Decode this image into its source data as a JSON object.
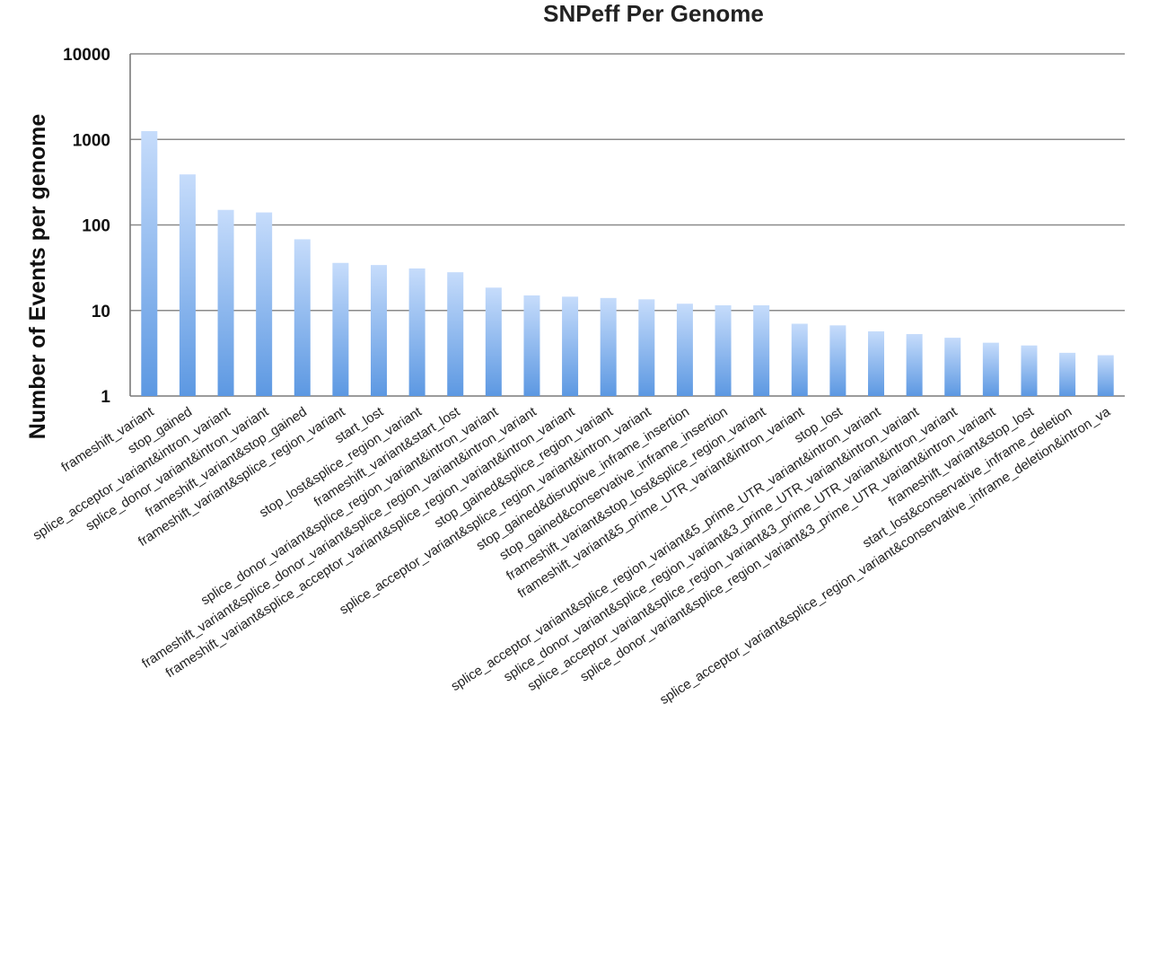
{
  "chart_data": {
    "type": "bar",
    "title": "SNPeff Per Genome",
    "xlabel": "",
    "ylabel": "Number of Events per genome",
    "yscale": "log",
    "ylim": [
      1,
      10000
    ],
    "yticks": [
      "1",
      "10",
      "100",
      "1000",
      "10000"
    ],
    "grid": true,
    "legend": "none",
    "bar_color_top": "#c6dcfb",
    "bar_color_bottom": "#5c98e2",
    "categories": [
      "frameshift_variant",
      "stop_gained",
      "splice_acceptor_variant&intron_variant",
      "splice_donor_variant&intron_variant",
      "frameshift_variant&stop_gained",
      "frameshift_variant&splice_region_variant",
      "start_lost",
      "stop_lost&splice_region_variant",
      "frameshift_variant&start_lost",
      "splice_donor_variant&splice_region_variant&intron_variant",
      "frameshift_variant&splice_donor_variant&splice_region_variant&intron_variant",
      "frameshift_variant&splice_acceptor_variant&splice_region_variant&intron_variant",
      "stop_gained&splice_region_variant",
      "splice_acceptor_variant&splice_region_variant&intron_variant",
      "stop_gained&disruptive_inframe_insertion",
      "stop_gained&conservative_inframe_insertion",
      "frameshift_variant&stop_lost&splice_region_variant",
      "frameshift_variant&5_prime_UTR_variant&intron_variant",
      "stop_lost",
      "splice_acceptor_variant&splice_region_variant&5_prime_UTR_variant&intron_variant",
      "splice_donor_variant&splice_region_variant&3_prime_UTR_variant&intron_variant",
      "splice_acceptor_variant&splice_region_variant&3_prime_UTR_variant&intron_variant",
      "splice_donor_variant&splice_region_variant&3_prime_UTR_variant&intron_variant",
      "frameshift_variant&stop_lost",
      "start_lost&conservative_inframe_deletion",
      "splice_acceptor_variant&splice_region_variant&conservative_inframe_deletion&intron_va"
    ],
    "values": [
      1250,
      390,
      150,
      140,
      68,
      36,
      34,
      31,
      28,
      18.5,
      15,
      14.5,
      14,
      13.5,
      12,
      11.5,
      11.5,
      7,
      6.7,
      5.7,
      5.3,
      4.8,
      4.2,
      3.9,
      3.2,
      3.0
    ]
  }
}
